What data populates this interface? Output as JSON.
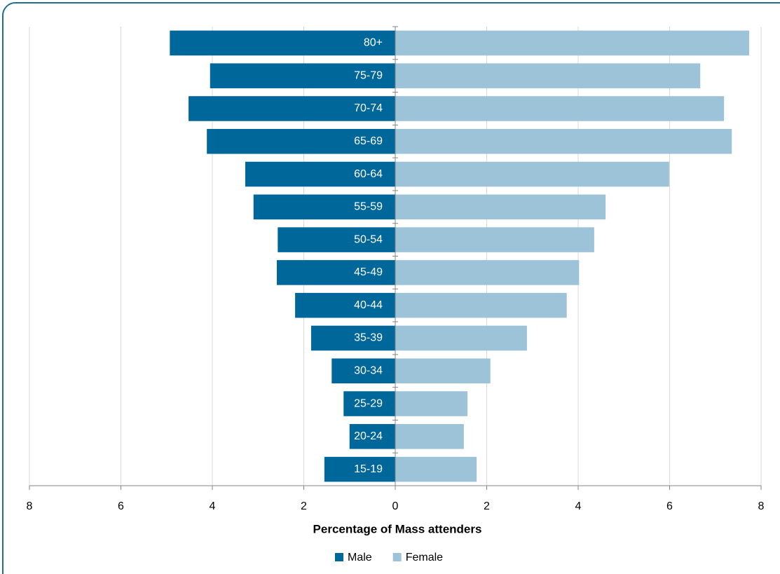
{
  "chart_data": {
    "type": "pyramid",
    "xlabel": "Percentage of Mass attenders",
    "categories": [
      "80+",
      "75-79",
      "70-74",
      "65-69",
      "60-64",
      "55-59",
      "50-54",
      "45-49",
      "40-44",
      "35-39",
      "30-34",
      "25-29",
      "20-24",
      "15-19"
    ],
    "series": [
      {
        "name": "Male",
        "color": "#00679a",
        "values": [
          4.93,
          4.05,
          4.52,
          4.12,
          3.28,
          3.1,
          2.57,
          2.59,
          2.19,
          1.84,
          1.39,
          1.13,
          1.0,
          1.55
        ]
      },
      {
        "name": "Female",
        "color": "#9dc3d8",
        "values": [
          7.74,
          6.67,
          7.19,
          7.36,
          5.99,
          4.6,
          4.35,
          4.02,
          3.75,
          2.88,
          2.08,
          1.58,
          1.5,
          1.78
        ]
      }
    ],
    "xlim": [
      -8,
      8
    ],
    "xticks": [
      {
        "value": -8,
        "label": "8"
      },
      {
        "value": -6,
        "label": "6"
      },
      {
        "value": -4,
        "label": "4"
      },
      {
        "value": -2,
        "label": "2"
      },
      0,
      2,
      4,
      6,
      8
    ],
    "grid": true,
    "legend": "bottom"
  }
}
